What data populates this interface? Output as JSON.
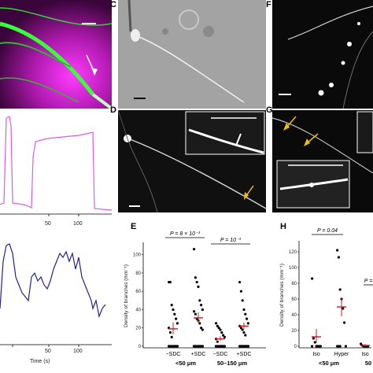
{
  "panels": {
    "C": {
      "letter": "C"
    },
    "D": {
      "letter": "D"
    },
    "E": {
      "letter": "E"
    },
    "F": {
      "letter": "F"
    },
    "G": {
      "letter": "G"
    },
    "H": {
      "letter": "H"
    }
  },
  "traces": {
    "pink_ticks": [
      "50",
      "100"
    ],
    "blue_ticks": [
      "50",
      "100"
    ],
    "time_label": "Time (s)"
  },
  "chart_data": [
    {
      "type": "scatter",
      "panel": "E",
      "ylabel": "Density of branches (mm⁻¹)",
      "ylim": [
        0,
        110
      ],
      "yticks": [
        "0",
        "20",
        "40",
        "60",
        "80",
        "100"
      ],
      "categories": [
        "−SDC",
        "+SDC",
        "−SDC",
        "+SDC"
      ],
      "groups": [
        "<50 μm",
        "50–150 μm"
      ],
      "annotations": [
        "P = 8 × 10⁻³",
        "P = 10⁻³"
      ],
      "means": [
        19,
        31,
        8,
        22
      ],
      "sem_lo": [
        13,
        26,
        6,
        19
      ],
      "sem_hi": [
        26,
        37,
        11,
        26
      ]
    },
    {
      "type": "scatter",
      "panel": "H",
      "ylabel": "Density of branches (mm⁻¹)",
      "ylim": [
        0,
        130
      ],
      "yticks": [
        "0",
        "20",
        "40",
        "60",
        "80",
        "100",
        "120"
      ],
      "categories": [
        "Iso",
        "Hyper",
        "Iso"
      ],
      "groups": [
        "<50 μm",
        "50"
      ],
      "annotations": [
        "P = 0.04",
        "P ="
      ],
      "means": [
        12,
        50,
        1
      ],
      "sem_lo": [
        4,
        38,
        0
      ],
      "sem_hi": [
        22,
        62,
        3
      ]
    }
  ]
}
